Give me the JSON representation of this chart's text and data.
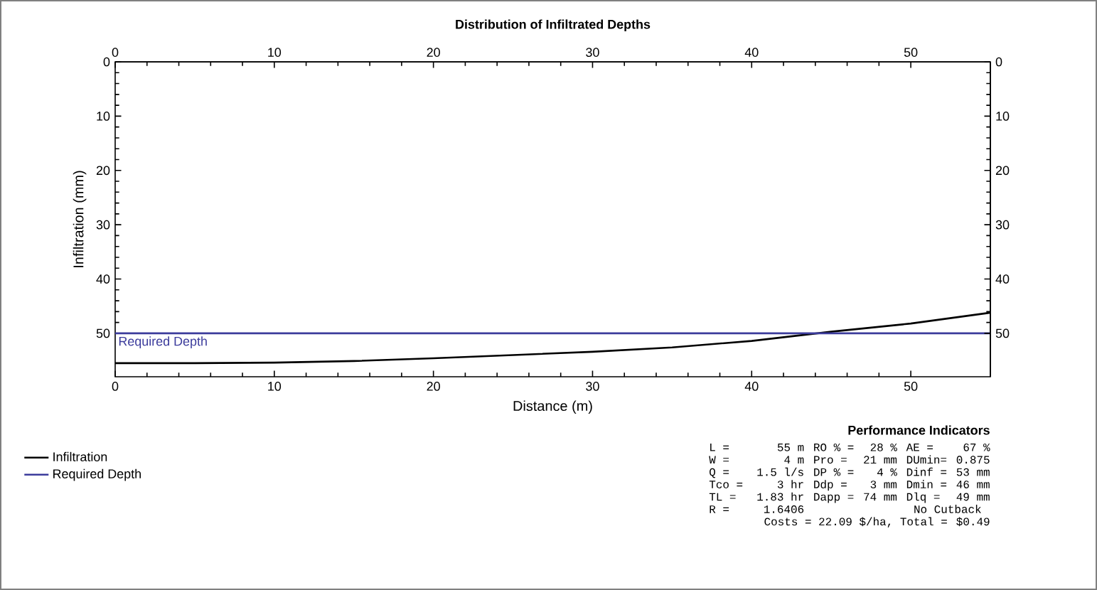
{
  "chart_data": {
    "type": "line",
    "title": "Distribution of Infiltrated Depths",
    "xlabel": "Distance (m)",
    "ylabel": "Infiltration (mm)",
    "xlim": [
      0,
      55
    ],
    "xticks": [
      0,
      10,
      20,
      30,
      40,
      50
    ],
    "x2lim": [
      0,
      55
    ],
    "x2ticks": [
      0,
      10,
      20,
      30,
      40,
      50
    ],
    "ylim": [
      58,
      0
    ],
    "yticks": [
      0,
      10,
      20,
      30,
      40,
      50
    ],
    "y2lim": [
      58,
      0
    ],
    "y2ticks": [
      0,
      10,
      20,
      30,
      40,
      50
    ],
    "legend": "bottom left",
    "series": [
      {
        "name": "Infiltration",
        "color": "#000000",
        "x": [
          0,
          5,
          10,
          15,
          20,
          25,
          30,
          35,
          40,
          45,
          50,
          55
        ],
        "values": [
          55.5,
          55.5,
          55.4,
          55.1,
          54.6,
          54.0,
          53.4,
          52.6,
          51.4,
          49.7,
          48.2,
          46.2
        ]
      },
      {
        "name": "Required Depth",
        "color": "#3c3c9c",
        "x": [
          0,
          55
        ],
        "values": [
          50,
          50
        ]
      }
    ],
    "annotations": [
      {
        "text": "Required Depth",
        "x": 0,
        "y": 50
      },
      "Performance Indicators",
      "L =",
      "55 m",
      "RO % =",
      "28 %",
      "AE =",
      "67 %",
      "W =",
      "4 m",
      "Pro =",
      "21 mm",
      "DUmin=",
      "0.875",
      "Q =",
      "1.5 l/s",
      "DP % =",
      "4 %",
      "Dinf =",
      "53 mm",
      "Tco =",
      "3 hr",
      "Ddp =",
      "3 mm",
      "Dmin =",
      "46 mm",
      "TL =",
      "1.83 hr",
      "Dapp =",
      "74 mm",
      "Dlq =",
      "49 mm",
      "R =",
      "1.6406",
      "No Cutback",
      "Costs = 22.09 $/ha, Total =",
      "$0.49"
    ]
  }
}
